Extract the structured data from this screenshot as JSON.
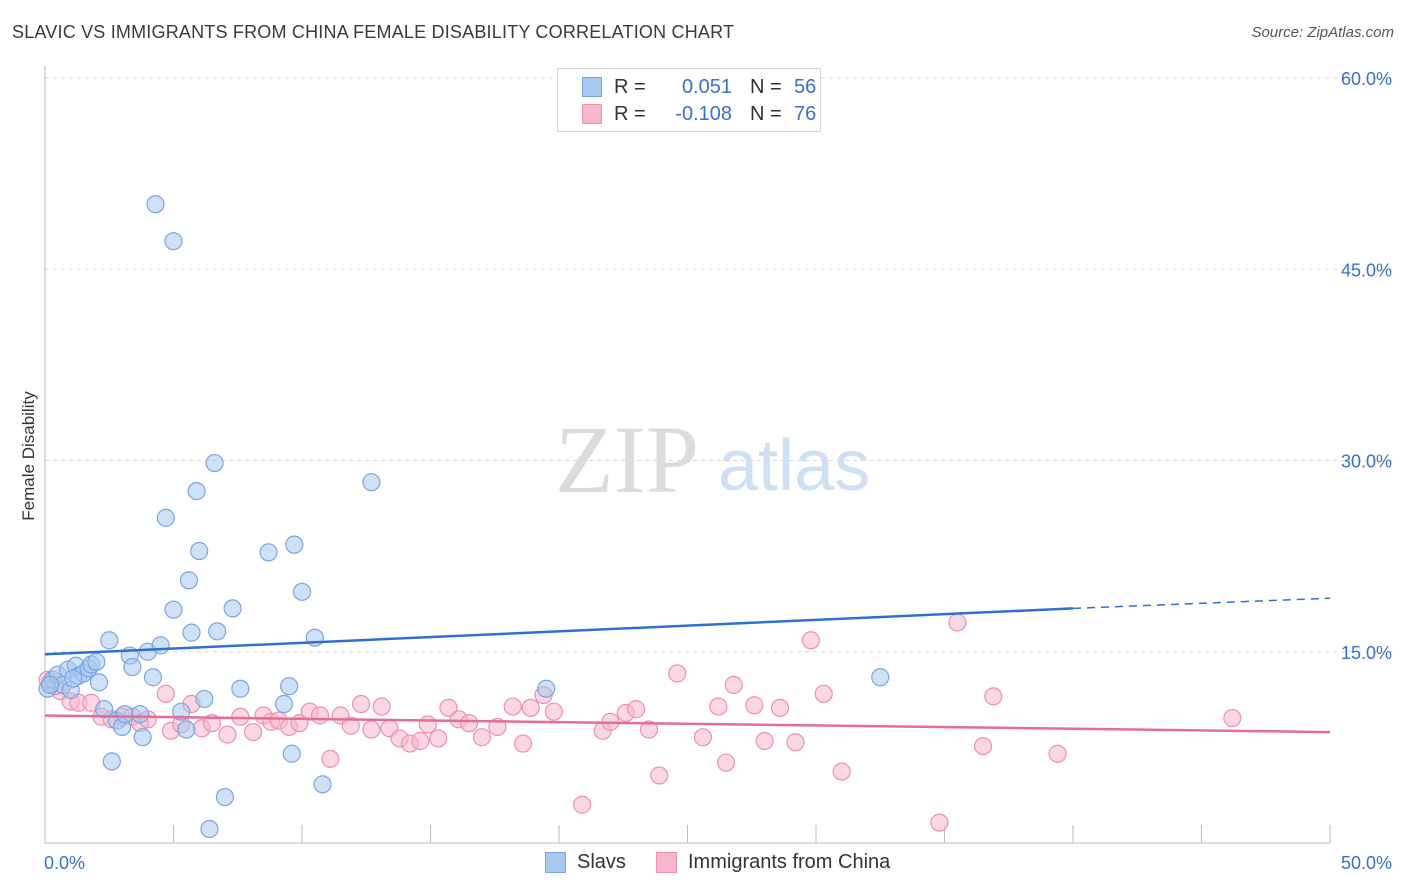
{
  "title": "SLAVIC VS IMMIGRANTS FROM CHINA FEMALE DISABILITY CORRELATION CHART",
  "source": "Source: ZipAtlas.com",
  "watermark": {
    "zip": "ZIP",
    "atlas": "atlas"
  },
  "colors": {
    "slavs_fill": "#a8c8f0",
    "slavs_stroke": "#7aa6e0",
    "slavs_line": "#2f6fd0",
    "china_fill": "#f6b6cc",
    "china_stroke": "#ee90b0",
    "china_line": "#e46c98",
    "axis_text": "#3a6fcf",
    "grid": "#d8d8d8"
  },
  "legend": {
    "r_label": "R =",
    "n_label": "N =",
    "rows": [
      {
        "series": "slavs",
        "r": "0.051",
        "n": "56"
      },
      {
        "series": "china",
        "r": "-0.108",
        "n": "76"
      }
    ]
  },
  "chart_data": {
    "type": "scatter",
    "ylabel": "Female Disability",
    "xlabel": "",
    "xlim": [
      0,
      50
    ],
    "ylim": [
      0,
      60
    ],
    "x_tick_labels": [
      "0.0%",
      "50.0%"
    ],
    "y_ticks": [
      15,
      30,
      45,
      60
    ],
    "y_tick_labels": [
      "15.0%",
      "30.0%",
      "45.0%",
      "60.0%"
    ],
    "grid": true,
    "legend_position": "top-center",
    "series": [
      {
        "key": "slavs",
        "name": "Slavs",
        "r": 0.051,
        "n": 56,
        "trend": {
          "x0": 0,
          "y0": 14.8,
          "x1": 40,
          "y1": 18.4,
          "dashed_to_x": 50,
          "dashed_to_y": 19.2
        },
        "points": [
          [
            0.1,
            12.1
          ],
          [
            0.3,
            12.8
          ],
          [
            0.5,
            13.2
          ],
          [
            0.7,
            12.4
          ],
          [
            0.9,
            13.6
          ],
          [
            1.0,
            12.0
          ],
          [
            1.2,
            13.9
          ],
          [
            1.3,
            13.1
          ],
          [
            1.5,
            13.3
          ],
          [
            1.7,
            13.7
          ],
          [
            1.8,
            14.0
          ],
          [
            2.0,
            14.2
          ],
          [
            2.1,
            12.6
          ],
          [
            2.3,
            10.5
          ],
          [
            2.5,
            15.9
          ],
          [
            2.6,
            6.4
          ],
          [
            2.8,
            9.6
          ],
          [
            3.0,
            9.1
          ],
          [
            3.1,
            10.1
          ],
          [
            3.3,
            14.7
          ],
          [
            3.4,
            13.8
          ],
          [
            3.7,
            10.1
          ],
          [
            3.8,
            8.3
          ],
          [
            4.0,
            15.0
          ],
          [
            4.2,
            13.0
          ],
          [
            4.5,
            15.5
          ],
          [
            4.7,
            25.5
          ],
          [
            5.0,
            18.3
          ],
          [
            5.0,
            47.2
          ],
          [
            4.3,
            50.1
          ],
          [
            5.3,
            10.3
          ],
          [
            5.5,
            8.9
          ],
          [
            5.6,
            20.6
          ],
          [
            5.7,
            16.5
          ],
          [
            5.9,
            27.6
          ],
          [
            6.0,
            22.9
          ],
          [
            6.2,
            11.3
          ],
          [
            6.4,
            1.1
          ],
          [
            6.6,
            29.8
          ],
          [
            6.7,
            16.6
          ],
          [
            7.0,
            3.6
          ],
          [
            7.3,
            18.4
          ],
          [
            7.6,
            12.1
          ],
          [
            8.7,
            22.8
          ],
          [
            9.3,
            10.9
          ],
          [
            9.5,
            12.3
          ],
          [
            9.6,
            7.0
          ],
          [
            9.7,
            23.4
          ],
          [
            10.0,
            19.7
          ],
          [
            10.5,
            16.1
          ],
          [
            10.8,
            4.6
          ],
          [
            12.7,
            28.3
          ],
          [
            19.5,
            12.1
          ],
          [
            32.5,
            13.0
          ],
          [
            0.2,
            12.4
          ],
          [
            1.1,
            12.9
          ]
        ]
      },
      {
        "key": "china",
        "name": "Immigrants from China",
        "r": -0.108,
        "n": 76,
        "trend": {
          "x0": 0,
          "y0": 10.0,
          "x1": 50,
          "y1": 8.7
        },
        "points": [
          [
            0.2,
            12.6
          ],
          [
            0.6,
            11.9
          ],
          [
            1.0,
            11.1
          ],
          [
            1.3,
            11.0
          ],
          [
            1.8,
            11.0
          ],
          [
            2.2,
            9.9
          ],
          [
            2.6,
            9.7
          ],
          [
            3.0,
            9.9
          ],
          [
            3.4,
            9.9
          ],
          [
            3.7,
            9.4
          ],
          [
            4.0,
            9.7
          ],
          [
            4.7,
            11.7
          ],
          [
            4.9,
            8.8
          ],
          [
            5.3,
            9.3
          ],
          [
            5.7,
            10.9
          ],
          [
            6.1,
            9.0
          ],
          [
            6.5,
            9.4
          ],
          [
            7.1,
            8.5
          ],
          [
            7.6,
            9.9
          ],
          [
            8.1,
            8.7
          ],
          [
            8.5,
            10.0
          ],
          [
            8.8,
            9.5
          ],
          [
            9.1,
            9.6
          ],
          [
            9.5,
            9.1
          ],
          [
            9.9,
            9.4
          ],
          [
            10.3,
            10.3
          ],
          [
            10.7,
            10.0
          ],
          [
            11.1,
            6.6
          ],
          [
            11.5,
            10.0
          ],
          [
            11.9,
            9.2
          ],
          [
            12.3,
            10.9
          ],
          [
            12.7,
            8.9
          ],
          [
            13.1,
            10.7
          ],
          [
            13.4,
            9.0
          ],
          [
            13.8,
            8.2
          ],
          [
            14.2,
            7.8
          ],
          [
            14.6,
            8.0
          ],
          [
            14.9,
            9.3
          ],
          [
            15.3,
            8.2
          ],
          [
            15.7,
            10.6
          ],
          [
            16.1,
            9.7
          ],
          [
            16.5,
            9.4
          ],
          [
            17.0,
            8.3
          ],
          [
            17.6,
            9.1
          ],
          [
            18.2,
            10.7
          ],
          [
            18.6,
            7.8
          ],
          [
            18.9,
            10.6
          ],
          [
            19.4,
            11.6
          ],
          [
            19.8,
            10.3
          ],
          [
            20.9,
            3.0
          ],
          [
            21.7,
            8.8
          ],
          [
            22.0,
            9.5
          ],
          [
            22.6,
            10.2
          ],
          [
            23.0,
            10.5
          ],
          [
            23.5,
            8.9
          ],
          [
            23.9,
            5.3
          ],
          [
            24.6,
            13.3
          ],
          [
            25.6,
            8.3
          ],
          [
            26.2,
            10.7
          ],
          [
            26.5,
            6.3
          ],
          [
            26.8,
            12.4
          ],
          [
            27.6,
            10.8
          ],
          [
            28.0,
            8.0
          ],
          [
            28.6,
            10.6
          ],
          [
            29.2,
            7.9
          ],
          [
            29.8,
            15.9
          ],
          [
            30.3,
            11.7
          ],
          [
            31.0,
            5.6
          ],
          [
            34.8,
            1.6
          ],
          [
            35.5,
            17.3
          ],
          [
            36.5,
            7.6
          ],
          [
            36.9,
            11.5
          ],
          [
            39.4,
            7.0
          ],
          [
            46.2,
            9.8
          ],
          [
            0.1,
            12.8
          ],
          [
            0.4,
            12.3
          ]
        ]
      }
    ]
  }
}
